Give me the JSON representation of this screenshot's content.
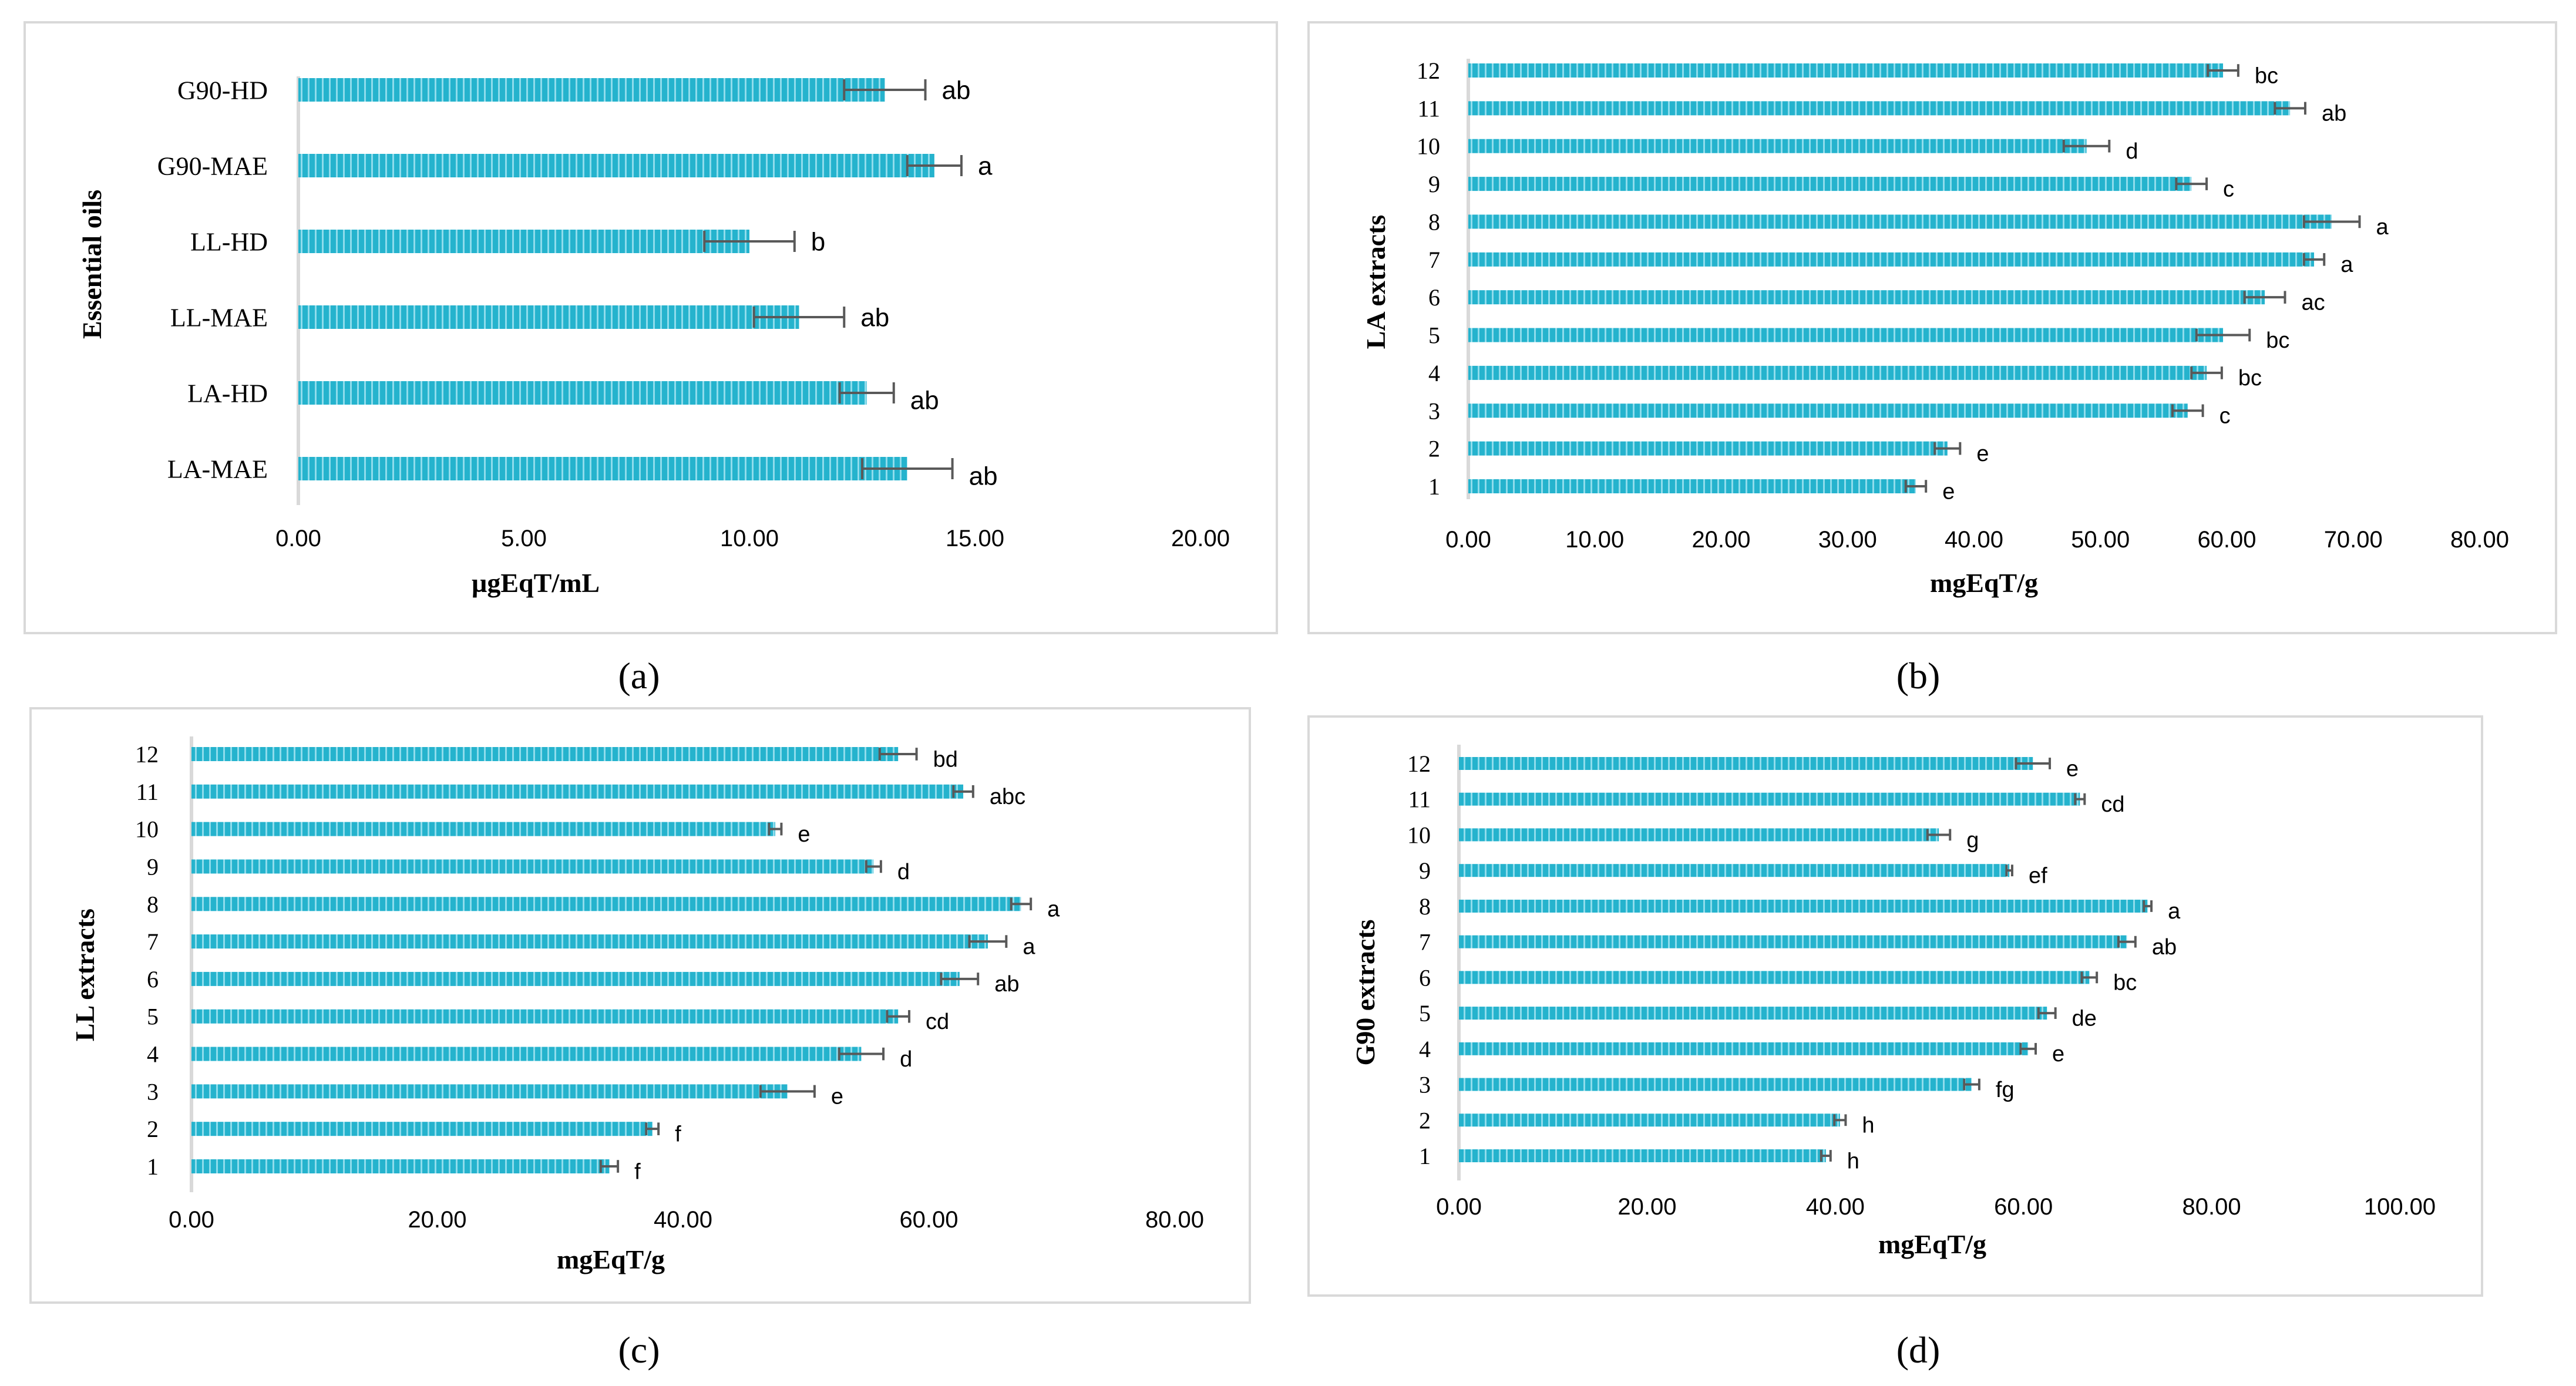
{
  "colors": {
    "bar": "#25b3cd",
    "bar_stripe": "#8fdcec",
    "error": "#595959",
    "axis": "#d9d9d9",
    "frame": "#d9d9d9",
    "text": "#000000"
  },
  "chart_data": [
    {
      "id": "a",
      "type": "bar",
      "orientation": "horizontal",
      "panel_label": "(a)",
      "ylabel": "Essential oils",
      "xlabel": "µgEqT/mL",
      "xlim": [
        0,
        20
      ],
      "xticks": [
        "0.00",
        "5.00",
        "10.00",
        "15.00",
        "20.00"
      ],
      "categories": [
        "G90-HD",
        "G90-MAE",
        "LL-HD",
        "LL-MAE",
        "LA-HD",
        "LA-MAE"
      ],
      "values": [
        13.0,
        14.1,
        10.0,
        11.1,
        12.6,
        13.5
      ],
      "errors": [
        0.9,
        0.6,
        1.0,
        1.0,
        0.6,
        1.0
      ],
      "letters": [
        "ab",
        "a",
        "b",
        "ab",
        "ab",
        "ab"
      ]
    },
    {
      "id": "b",
      "type": "bar",
      "orientation": "horizontal",
      "panel_label": "(b)",
      "ylabel": "LA extracts",
      "xlabel": "mgEqT/g",
      "xlim": [
        0,
        80
      ],
      "xticks": [
        "0.00",
        "10.00",
        "20.00",
        "30.00",
        "40.00",
        "50.00",
        "60.00",
        "70.00",
        "80.00"
      ],
      "categories": [
        "12",
        "11",
        "10",
        "9",
        "8",
        "7",
        "6",
        "5",
        "4",
        "3",
        "2",
        "1"
      ],
      "values": [
        59.7,
        65.0,
        48.9,
        57.2,
        68.3,
        66.9,
        63.0,
        59.7,
        58.4,
        56.9,
        37.9,
        35.4
      ],
      "errors": [
        1.2,
        1.2,
        1.8,
        1.2,
        2.2,
        0.8,
        1.6,
        2.1,
        1.2,
        1.2,
        1.0,
        0.8
      ],
      "letters": [
        "bc",
        "ab",
        "d",
        "c",
        "a",
        "a",
        "ac",
        "bc",
        "bc",
        "c",
        "e",
        "e"
      ]
    },
    {
      "id": "c",
      "type": "bar",
      "orientation": "horizontal",
      "panel_label": "(c)",
      "ylabel": "LL extracts",
      "xlabel": "mgEqT/g",
      "xlim": [
        0,
        80
      ],
      "xticks": [
        "0.00",
        "20.00",
        "40.00",
        "60.00",
        "80.00"
      ],
      "categories": [
        "12",
        "11",
        "10",
        "9",
        "8",
        "7",
        "6",
        "5",
        "4",
        "3",
        "2",
        "1"
      ],
      "values": [
        57.5,
        62.8,
        47.5,
        55.5,
        67.5,
        64.8,
        62.5,
        57.5,
        54.5,
        48.5,
        37.5,
        34.0
      ],
      "errors": [
        1.5,
        0.8,
        0.5,
        0.6,
        0.8,
        1.5,
        1.5,
        0.9,
        1.8,
        2.2,
        0.5,
        0.7
      ],
      "letters": [
        "bd",
        "abc",
        "e",
        "d",
        "a",
        "a",
        "ab",
        "cd",
        "d",
        "e",
        "f",
        "f"
      ]
    },
    {
      "id": "d",
      "type": "bar",
      "orientation": "horizontal",
      "panel_label": "(d)",
      "ylabel": "G90 extracts",
      "xlabel": "mgEqT/g",
      "xlim": [
        0,
        100
      ],
      "xticks": [
        "0.00",
        "20.00",
        "40.00",
        "60.00",
        "80.00",
        "100.00"
      ],
      "categories": [
        "12",
        "11",
        "10",
        "9",
        "8",
        "7",
        "6",
        "5",
        "4",
        "3",
        "2",
        "1"
      ],
      "values": [
        61.0,
        66.0,
        51.0,
        58.5,
        73.2,
        71.0,
        67.0,
        62.5,
        60.5,
        54.5,
        40.5,
        39.0
      ],
      "errors": [
        1.8,
        0.5,
        1.2,
        0.3,
        0.4,
        0.9,
        0.8,
        0.9,
        0.8,
        0.8,
        0.6,
        0.5
      ],
      "letters": [
        "e",
        "cd",
        "g",
        "ef",
        "a",
        "ab",
        "bc",
        "de",
        "e",
        "fg",
        "h",
        "h"
      ]
    }
  ]
}
